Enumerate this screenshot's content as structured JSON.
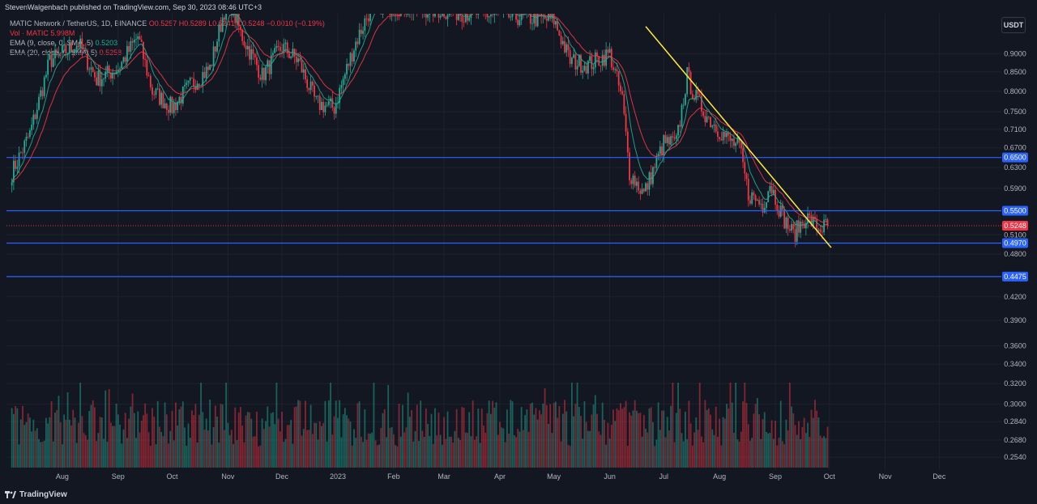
{
  "publisher": "StevenWalgenbach published on TradingView.com, Sep 30, 2023 08:46 UTC+3",
  "legend": {
    "symbol": "MATIC Network / TetherUS, 1D, BINANCE",
    "ohlc": "O0.5257 H0.5289 L0.5241 C0.5248 −0.0010 (−0.19%)",
    "volume": "Vol · MATIC 5.998M",
    "ema9_label": "EMA (9, close, 0, SMA, 5)",
    "ema9_value": "0.5203",
    "ema20_label": "EMA (20, close, 0, SMA, 5)",
    "ema20_value": "0.5258"
  },
  "currency_button": "USDT",
  "footer_brand": "TradingView",
  "colors": {
    "up": "#22ab94",
    "down": "#f23645",
    "support": "#2962ff",
    "trendline": "#ffeb3b",
    "ema9": "#22ab94",
    "ema20": "#f23645",
    "background": "#131722"
  },
  "chart_data": {
    "type": "candlestick",
    "symbol": "MATICUSDT",
    "interval": "1D",
    "y_scale": "log",
    "ylim": [
      0.244,
      1.02
    ],
    "y_ticks": [
      "0.9000",
      "0.8500",
      "0.8000",
      "0.7500",
      "0.7100",
      "0.6700",
      "0.6300",
      "0.5900",
      "0.5100",
      "0.4800",
      "0.4200",
      "0.3900",
      "0.3600",
      "0.3400",
      "0.3200",
      "0.3000",
      "0.2840",
      "0.2680",
      "0.2540"
    ],
    "x_ticks": [
      "Aug",
      "Sep",
      "Oct",
      "Nov",
      "Dec",
      "2023",
      "Feb",
      "Mar",
      "Apr",
      "May",
      "Jun",
      "Jul",
      "Aug",
      "Sep",
      "Oct",
      "Nov",
      "Dec"
    ],
    "horizontal_levels": [
      {
        "label": "0.6500",
        "value": 0.65
      },
      {
        "label": "0.5500",
        "value": 0.55
      },
      {
        "label": "0.4970",
        "value": 0.497
      },
      {
        "label": "0.4475",
        "value": 0.4475
      }
    ],
    "last_price": {
      "label": "0.5248",
      "value": 0.5248
    },
    "trendline": {
      "from": {
        "date": "2023-06-21",
        "price": 0.98
      },
      "to": {
        "date": "2023-10-02",
        "price": 0.49
      }
    },
    "close_path": [
      {
        "date": "2022-07-04",
        "close": 0.62
      },
      {
        "date": "2022-07-14",
        "close": 0.7
      },
      {
        "date": "2022-07-25",
        "close": 0.88
      },
      {
        "date": "2022-08-10",
        "close": 0.93
      },
      {
        "date": "2022-08-20",
        "close": 0.83
      },
      {
        "date": "2022-09-01",
        "close": 0.86
      },
      {
        "date": "2022-09-12",
        "close": 0.95
      },
      {
        "date": "2022-09-20",
        "close": 0.8
      },
      {
        "date": "2022-10-01",
        "close": 0.76
      },
      {
        "date": "2022-10-12",
        "close": 0.82
      },
      {
        "date": "2022-10-22",
        "close": 0.86
      },
      {
        "date": "2022-11-01",
        "close": 1.08
      },
      {
        "date": "2022-11-08",
        "close": 0.96
      },
      {
        "date": "2022-11-20",
        "close": 0.84
      },
      {
        "date": "2022-12-01",
        "close": 0.92
      },
      {
        "date": "2022-12-10",
        "close": 0.88
      },
      {
        "date": "2022-12-20",
        "close": 0.77
      },
      {
        "date": "2022-12-30",
        "close": 0.76
      },
      {
        "date": "2023-01-10",
        "close": 0.92
      },
      {
        "date": "2023-01-20",
        "close": 1.05
      },
      {
        "date": "2023-05-01",
        "close": 1.0
      },
      {
        "date": "2023-05-10",
        "close": 0.88
      },
      {
        "date": "2023-05-20",
        "close": 0.87
      },
      {
        "date": "2023-06-01",
        "close": 0.9
      },
      {
        "date": "2023-06-08",
        "close": 0.78
      },
      {
        "date": "2023-06-12",
        "close": 0.62
      },
      {
        "date": "2023-06-20",
        "close": 0.58
      },
      {
        "date": "2023-07-01",
        "close": 0.68
      },
      {
        "date": "2023-07-08",
        "close": 0.68
      },
      {
        "date": "2023-07-14",
        "close": 0.84
      },
      {
        "date": "2023-07-18",
        "close": 0.79
      },
      {
        "date": "2023-07-25",
        "close": 0.74
      },
      {
        "date": "2023-08-05",
        "close": 0.69
      },
      {
        "date": "2023-08-12",
        "close": 0.67
      },
      {
        "date": "2023-08-17",
        "close": 0.58
      },
      {
        "date": "2023-08-25",
        "close": 0.56
      },
      {
        "date": "2023-08-29",
        "close": 0.6
      },
      {
        "date": "2023-09-05",
        "close": 0.54
      },
      {
        "date": "2023-09-11",
        "close": 0.51
      },
      {
        "date": "2023-09-18",
        "close": 0.54
      },
      {
        "date": "2023-09-25",
        "close": 0.52
      },
      {
        "date": "2023-09-30",
        "close": 0.5248
      }
    ]
  }
}
